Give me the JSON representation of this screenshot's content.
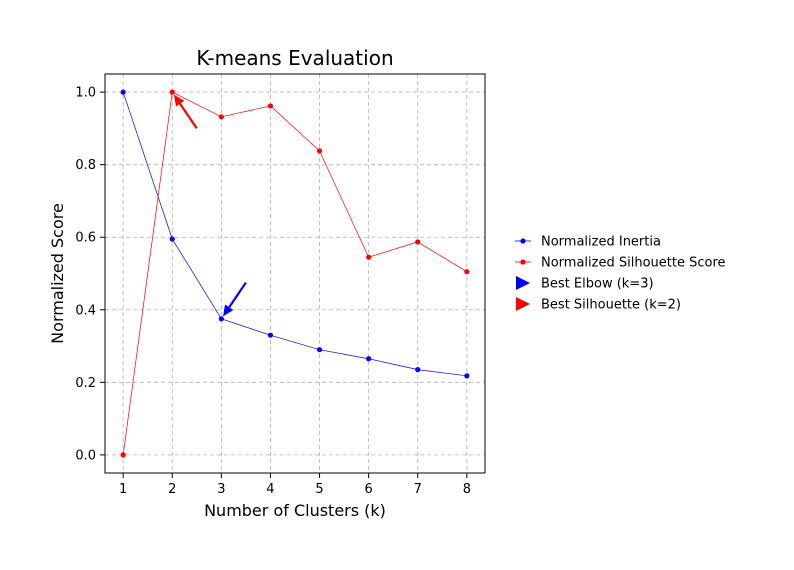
{
  "chart_data": {
    "type": "line",
    "title": "K-means Evaluation",
    "xlabel": "Number of Clusters (k)",
    "ylabel": "Normalized Score",
    "x": [
      1,
      2,
      3,
      4,
      5,
      6,
      7,
      8
    ],
    "xlim": [
      0.63,
      8.37
    ],
    "ylim": [
      -0.05,
      1.05
    ],
    "xticks": [
      "1",
      "2",
      "3",
      "4",
      "5",
      "6",
      "7",
      "8"
    ],
    "yticks": [
      "0.0",
      "0.2",
      "0.4",
      "0.6",
      "0.8",
      "1.0"
    ],
    "grid": true,
    "legend_position": "right, outside plot",
    "series": [
      {
        "name": "Normalized Inertia",
        "color": "#0000ff",
        "marker": "dot",
        "values": [
          1.0,
          0.595,
          0.375,
          0.33,
          0.29,
          0.265,
          0.235,
          0.218
        ]
      },
      {
        "name": "Normalized Silhouette Score",
        "color": "#ff0000",
        "marker": "dot",
        "values": [
          0.0,
          1.0,
          0.932,
          0.962,
          0.838,
          0.545,
          0.587,
          0.505
        ]
      }
    ],
    "annotations": [
      {
        "name": "Best Elbow (k=3)",
        "color": "#0000ff",
        "x": 3,
        "y": 0.375,
        "text_x": 3.5,
        "text_y": 0.475
      },
      {
        "name": "Best Silhouette (k=2)",
        "color": "#ff0000",
        "x": 2,
        "y": 1.0,
        "text_x": 2.5,
        "text_y": 0.9
      }
    ]
  }
}
